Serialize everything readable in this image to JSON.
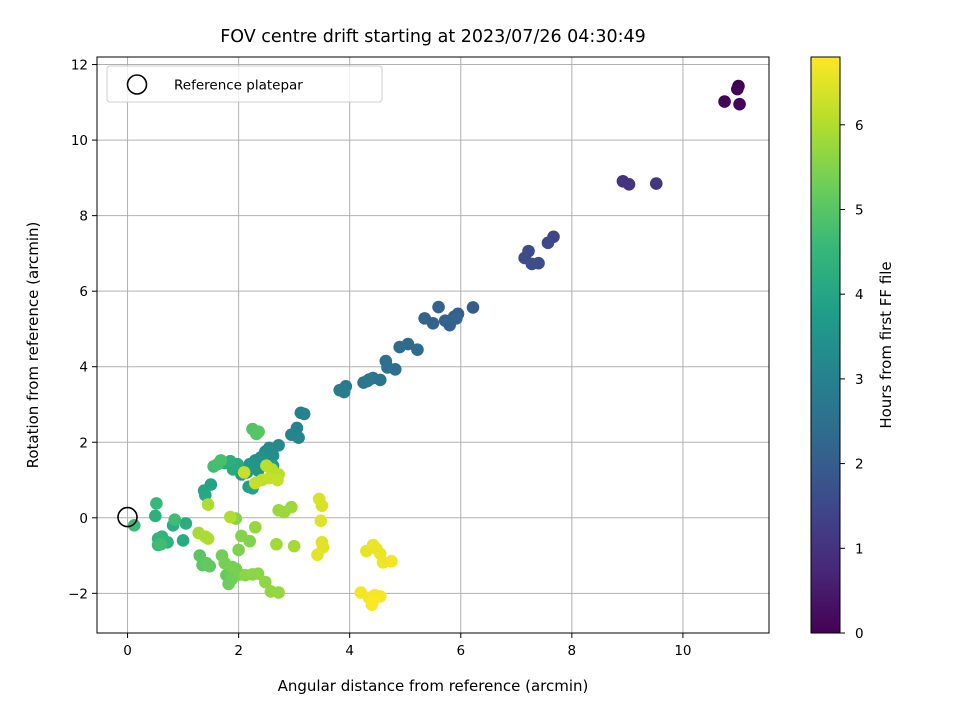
{
  "chart_data": {
    "type": "scatter",
    "title": "FOV centre drift starting at 2023/07/26 04:30:49",
    "xlabel": "Angular distance from reference (arcmin)",
    "ylabel": "Rotation from reference (arcmin)",
    "xlim": [
      -0.55,
      11.55
    ],
    "ylim": [
      -3.05,
      12.2
    ],
    "x_ticks": [
      0,
      2,
      4,
      6,
      8,
      10
    ],
    "x_tick_labels": [
      "0",
      "2",
      "4",
      "6",
      "8",
      "10"
    ],
    "y_ticks": [
      -2,
      0,
      2,
      4,
      6,
      8,
      10,
      12
    ],
    "y_tick_labels": [
      "−2",
      "0",
      "2",
      "4",
      "6",
      "8",
      "10",
      "12"
    ],
    "grid": true,
    "legend": {
      "placement": "top-left",
      "entries": [
        "Reference platepar"
      ]
    },
    "reference_point": {
      "x": 0,
      "y": 0,
      "label": "Reference platepar"
    },
    "colorbar": {
      "label": "Hours from first FF file",
      "colormap": "viridis",
      "range": [
        0,
        6.8
      ],
      "ticks": [
        0,
        1,
        2,
        3,
        4,
        5,
        6
      ],
      "tick_labels": [
        "0",
        "1",
        "2",
        "3",
        "4",
        "5",
        "6"
      ]
    },
    "colors": [
      "#440154",
      "#482878",
      "#3e4989",
      "#31688e",
      "#26828e",
      "#1f9e89",
      "#35b779",
      "#6ece58",
      "#b5de2b",
      "#fde725"
    ],
    "points": [
      {
        "x": 11.0,
        "y": 11.43,
        "c": 0.0
      },
      {
        "x": 10.98,
        "y": 11.35,
        "c": 0.05
      },
      {
        "x": 10.75,
        "y": 11.02,
        "c": 0.08
      },
      {
        "x": 11.02,
        "y": 10.95,
        "c": 0.1
      },
      {
        "x": 8.92,
        "y": 8.91,
        "c": 1.0
      },
      {
        "x": 9.03,
        "y": 8.83,
        "c": 1.02
      },
      {
        "x": 9.52,
        "y": 8.85,
        "c": 1.05
      },
      {
        "x": 7.67,
        "y": 7.44,
        "c": 1.45
      },
      {
        "x": 7.57,
        "y": 7.28,
        "c": 1.5
      },
      {
        "x": 7.22,
        "y": 7.06,
        "c": 1.55
      },
      {
        "x": 7.15,
        "y": 6.88,
        "c": 1.58
      },
      {
        "x": 7.28,
        "y": 6.72,
        "c": 1.62
      },
      {
        "x": 7.4,
        "y": 6.74,
        "c": 1.6
      },
      {
        "x": 6.22,
        "y": 5.57,
        "c": 2.0
      },
      {
        "x": 5.95,
        "y": 5.4,
        "c": 2.05
      },
      {
        "x": 5.88,
        "y": 5.32,
        "c": 2.08
      },
      {
        "x": 5.6,
        "y": 5.58,
        "c": 2.1
      },
      {
        "x": 5.5,
        "y": 5.15,
        "c": 2.12
      },
      {
        "x": 5.72,
        "y": 5.22,
        "c": 2.14
      },
      {
        "x": 5.8,
        "y": 5.1,
        "c": 2.15
      },
      {
        "x": 5.35,
        "y": 5.28,
        "c": 2.17
      },
      {
        "x": 5.92,
        "y": 5.28,
        "c": 2.18
      },
      {
        "x": 5.05,
        "y": 4.6,
        "c": 2.35
      },
      {
        "x": 4.9,
        "y": 4.52,
        "c": 2.38
      },
      {
        "x": 5.22,
        "y": 4.45,
        "c": 2.4
      },
      {
        "x": 4.65,
        "y": 4.15,
        "c": 2.45
      },
      {
        "x": 4.82,
        "y": 3.93,
        "c": 2.48
      },
      {
        "x": 4.68,
        "y": 3.98,
        "c": 2.5
      },
      {
        "x": 4.55,
        "y": 3.65,
        "c": 2.6
      },
      {
        "x": 4.42,
        "y": 3.7,
        "c": 2.62
      },
      {
        "x": 4.25,
        "y": 3.58,
        "c": 2.65
      },
      {
        "x": 4.32,
        "y": 3.62,
        "c": 2.67
      },
      {
        "x": 4.35,
        "y": 3.66,
        "c": 2.7
      },
      {
        "x": 3.93,
        "y": 3.48,
        "c": 2.8
      },
      {
        "x": 3.82,
        "y": 3.38,
        "c": 2.83
      },
      {
        "x": 3.9,
        "y": 3.33,
        "c": 2.85
      },
      {
        "x": 3.12,
        "y": 2.78,
        "c": 3.0
      },
      {
        "x": 3.18,
        "y": 2.75,
        "c": 3.02
      },
      {
        "x": 3.05,
        "y": 2.38,
        "c": 3.05
      },
      {
        "x": 2.95,
        "y": 2.2,
        "c": 3.08
      },
      {
        "x": 3.08,
        "y": 2.12,
        "c": 3.1
      },
      {
        "x": 2.72,
        "y": 1.92,
        "c": 3.2
      },
      {
        "x": 2.55,
        "y": 1.85,
        "c": 3.25
      },
      {
        "x": 2.48,
        "y": 1.75,
        "c": 3.3
      },
      {
        "x": 2.62,
        "y": 1.65,
        "c": 3.35
      },
      {
        "x": 2.4,
        "y": 1.6,
        "c": 3.4
      },
      {
        "x": 2.3,
        "y": 1.52,
        "c": 3.45
      },
      {
        "x": 2.45,
        "y": 1.48,
        "c": 3.5
      },
      {
        "x": 2.2,
        "y": 1.42,
        "c": 3.55
      },
      {
        "x": 2.35,
        "y": 1.25,
        "c": 3.6
      },
      {
        "x": 2.15,
        "y": 1.2,
        "c": 3.65
      },
      {
        "x": 2.05,
        "y": 1.15,
        "c": 3.7
      },
      {
        "x": 2.62,
        "y": 1.38,
        "c": 3.75
      },
      {
        "x": 2.18,
        "y": 0.82,
        "c": 3.85
      },
      {
        "x": 2.25,
        "y": 0.78,
        "c": 3.9
      },
      {
        "x": 1.5,
        "y": 0.88,
        "c": 3.95
      },
      {
        "x": 1.38,
        "y": 0.72,
        "c": 4.0
      },
      {
        "x": 1.4,
        "y": 0.6,
        "c": 4.05
      },
      {
        "x": 1.9,
        "y": 1.28,
        "c": 4.1
      },
      {
        "x": 1.98,
        "y": 1.42,
        "c": 4.15
      },
      {
        "x": 1.75,
        "y": 1.45,
        "c": 4.2
      },
      {
        "x": 1.85,
        "y": 1.5,
        "c": 4.25
      },
      {
        "x": 1.0,
        "y": -0.6,
        "c": 4.15
      },
      {
        "x": 1.05,
        "y": -0.15,
        "c": 4.2
      },
      {
        "x": 0.82,
        "y": -0.2,
        "c": 4.25
      },
      {
        "x": 0.5,
        "y": 0.05,
        "c": 4.3
      },
      {
        "x": 0.72,
        "y": -0.65,
        "c": 4.35
      },
      {
        "x": 0.62,
        "y": -0.5,
        "c": 4.4
      },
      {
        "x": 0.55,
        "y": -0.55,
        "c": 4.45
      },
      {
        "x": 0.52,
        "y": 0.38,
        "c": 4.55
      },
      {
        "x": 0.55,
        "y": -0.72,
        "c": 4.6
      },
      {
        "x": 0.12,
        "y": -0.2,
        "c": 4.62
      },
      {
        "x": 0.85,
        "y": -0.05,
        "c": 4.65
      },
      {
        "x": 0.6,
        "y": -0.7,
        "c": 4.68
      },
      {
        "x": 1.55,
        "y": 1.36,
        "c": 4.7
      },
      {
        "x": 1.62,
        "y": 1.42,
        "c": 4.75
      },
      {
        "x": 1.68,
        "y": 1.52,
        "c": 4.8
      },
      {
        "x": 2.25,
        "y": 2.35,
        "c": 4.9
      },
      {
        "x": 2.32,
        "y": 2.22,
        "c": 4.95
      },
      {
        "x": 2.36,
        "y": 2.28,
        "c": 5.0
      },
      {
        "x": 1.3,
        "y": -1.0,
        "c": 5.0
      },
      {
        "x": 1.35,
        "y": -1.25,
        "c": 5.05
      },
      {
        "x": 1.48,
        "y": -1.28,
        "c": 5.1
      },
      {
        "x": 1.42,
        "y": -1.2,
        "c": 5.12
      },
      {
        "x": 1.85,
        "y": -1.45,
        "c": 5.15
      },
      {
        "x": 1.78,
        "y": -1.52,
        "c": 5.2
      },
      {
        "x": 1.92,
        "y": -1.42,
        "c": 5.22
      },
      {
        "x": 1.82,
        "y": -1.75,
        "c": 5.25
      },
      {
        "x": 1.88,
        "y": -1.62,
        "c": 5.28
      },
      {
        "x": 1.95,
        "y": -1.35,
        "c": 5.3
      },
      {
        "x": 1.7,
        "y": -1.0,
        "c": 5.32
      },
      {
        "x": 1.75,
        "y": -1.2,
        "c": 5.35
      },
      {
        "x": 2.02,
        "y": -1.5,
        "c": 5.38
      },
      {
        "x": 1.88,
        "y": -1.3,
        "c": 5.4
      },
      {
        "x": 2.0,
        "y": -0.85,
        "c": 5.45
      },
      {
        "x": 2.2,
        "y": -0.62,
        "c": 5.5
      },
      {
        "x": 2.05,
        "y": -0.48,
        "c": 5.52
      },
      {
        "x": 1.95,
        "y": -0.02,
        "c": 5.55
      },
      {
        "x": 2.12,
        "y": -1.52,
        "c": 5.58
      },
      {
        "x": 2.35,
        "y": -1.48,
        "c": 5.6
      },
      {
        "x": 2.25,
        "y": -1.5,
        "c": 5.62
      },
      {
        "x": 2.48,
        "y": -1.7,
        "c": 5.65
      },
      {
        "x": 2.58,
        "y": -1.95,
        "c": 5.68
      },
      {
        "x": 2.72,
        "y": -1.98,
        "c": 5.7
      },
      {
        "x": 2.3,
        "y": -0.25,
        "c": 5.72
      },
      {
        "x": 2.72,
        "y": 0.2,
        "c": 5.75
      },
      {
        "x": 2.82,
        "y": 0.15,
        "c": 5.78
      },
      {
        "x": 2.95,
        "y": 0.28,
        "c": 5.8
      },
      {
        "x": 2.68,
        "y": -0.7,
        "c": 5.82
      },
      {
        "x": 3.0,
        "y": -0.75,
        "c": 5.85
      },
      {
        "x": 1.28,
        "y": -0.4,
        "c": 5.9
      },
      {
        "x": 1.4,
        "y": -0.5,
        "c": 5.92
      },
      {
        "x": 1.45,
        "y": -0.55,
        "c": 5.95
      },
      {
        "x": 1.45,
        "y": 0.35,
        "c": 5.97
      },
      {
        "x": 1.85,
        "y": 0.02,
        "c": 6.0
      },
      {
        "x": 2.6,
        "y": 1.28,
        "c": 6.05
      },
      {
        "x": 2.72,
        "y": 1.15,
        "c": 6.1
      },
      {
        "x": 2.5,
        "y": 1.38,
        "c": 6.12
      },
      {
        "x": 2.42,
        "y": 1.0,
        "c": 6.15
      },
      {
        "x": 2.55,
        "y": 1.05,
        "c": 6.18
      },
      {
        "x": 2.7,
        "y": 1.0,
        "c": 6.2
      },
      {
        "x": 2.3,
        "y": 0.92,
        "c": 6.22
      },
      {
        "x": 2.1,
        "y": 1.2,
        "c": 6.25
      },
      {
        "x": 3.45,
        "y": 0.5,
        "c": 6.4
      },
      {
        "x": 3.5,
        "y": 0.32,
        "c": 6.42
      },
      {
        "x": 3.48,
        "y": -0.08,
        "c": 6.45
      },
      {
        "x": 3.5,
        "y": -0.65,
        "c": 6.48
      },
      {
        "x": 3.52,
        "y": -0.78,
        "c": 6.5
      },
      {
        "x": 3.42,
        "y": -0.98,
        "c": 6.52
      },
      {
        "x": 4.3,
        "y": -0.88,
        "c": 6.55
      },
      {
        "x": 4.48,
        "y": -0.82,
        "c": 6.58
      },
      {
        "x": 4.42,
        "y": -0.72,
        "c": 6.6
      },
      {
        "x": 4.55,
        "y": -0.95,
        "c": 6.62
      },
      {
        "x": 4.6,
        "y": -1.18,
        "c": 6.64
      },
      {
        "x": 4.75,
        "y": -1.15,
        "c": 6.66
      },
      {
        "x": 4.2,
        "y": -1.98,
        "c": 6.68
      },
      {
        "x": 4.35,
        "y": -2.12,
        "c": 6.7
      },
      {
        "x": 4.45,
        "y": -2.05,
        "c": 6.72
      },
      {
        "x": 4.55,
        "y": -2.08,
        "c": 6.74
      },
      {
        "x": 4.4,
        "y": -2.3,
        "c": 6.76
      },
      {
        "x": 4.42,
        "y": -2.2,
        "c": 6.78
      }
    ]
  }
}
